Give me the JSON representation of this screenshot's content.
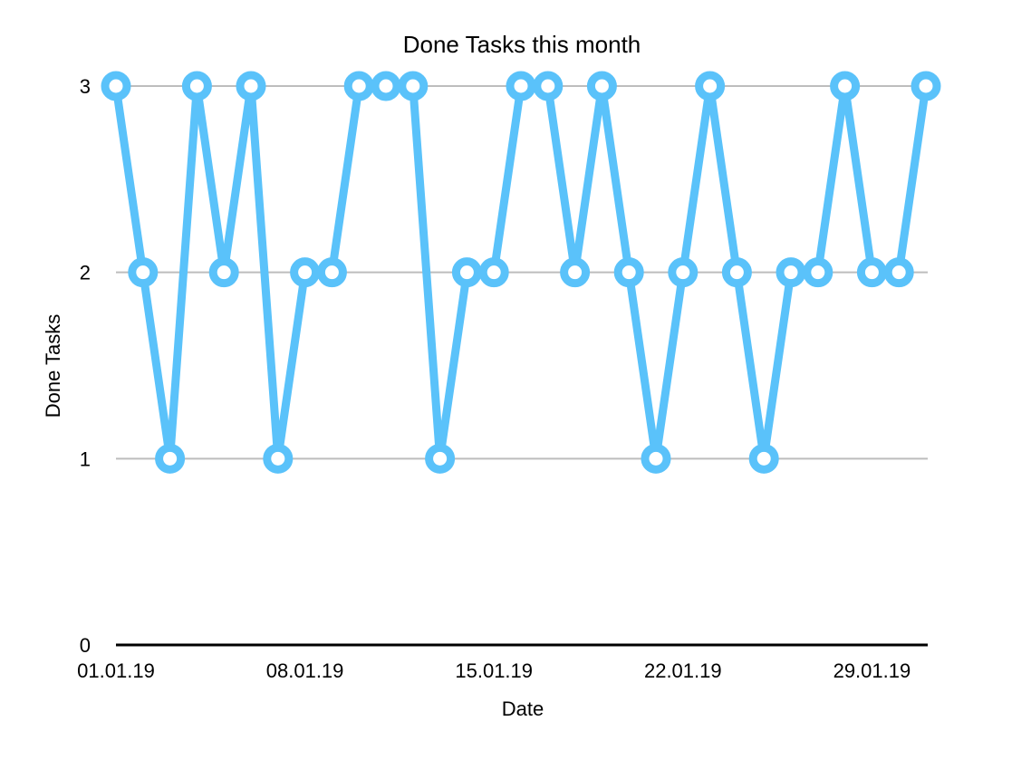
{
  "chart_data": {
    "type": "line",
    "title": "Done Tasks this month",
    "xlabel": "Date",
    "ylabel": "Done Tasks",
    "ylim": [
      0,
      3
    ],
    "yticks": [
      "0",
      "1",
      "2",
      "3"
    ],
    "xtick_labels": [
      "01.01.19",
      "08.01.19",
      "15.01.19",
      "22.01.19",
      "29.01.19"
    ],
    "grid": true,
    "color": "#5AC2FA",
    "x": [
      "01.01.19",
      "02.01.19",
      "03.01.19",
      "04.01.19",
      "05.01.19",
      "06.01.19",
      "07.01.19",
      "08.01.19",
      "09.01.19",
      "10.01.19",
      "11.01.19",
      "12.01.19",
      "13.01.19",
      "14.01.19",
      "15.01.19",
      "16.01.19",
      "17.01.19",
      "18.01.19",
      "19.01.19",
      "20.01.19",
      "21.01.19",
      "22.01.19",
      "23.01.19",
      "24.01.19",
      "25.01.19",
      "26.01.19",
      "27.01.19",
      "28.01.19",
      "29.01.19",
      "30.01.19",
      "31.01.19"
    ],
    "values": [
      3,
      2,
      1,
      3,
      2,
      3,
      1,
      2,
      2,
      3,
      3,
      3,
      1,
      2,
      2,
      3,
      3,
      2,
      3,
      2,
      1,
      2,
      3,
      2,
      1,
      2,
      2,
      3,
      2,
      2,
      3
    ]
  }
}
